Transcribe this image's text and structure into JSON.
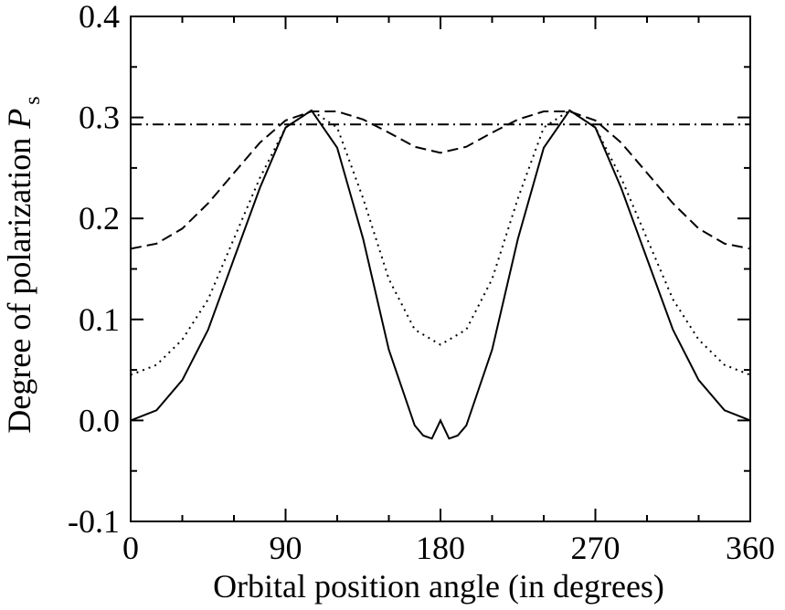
{
  "chart_data": {
    "type": "line",
    "title": "",
    "xlabel": "Orbital position angle (in degrees)",
    "ylabel": "Degree of polarization",
    "ylabel_symbol": "P",
    "ylabel_subscript": "s",
    "xlim": [
      0,
      360
    ],
    "ylim": [
      -0.1,
      0.4
    ],
    "x_ticks": [
      0,
      90,
      180,
      270,
      360
    ],
    "x_tick_labels": [
      "0",
      "90",
      "180",
      "270",
      "360"
    ],
    "x_minor_step": 30,
    "y_ticks": [
      -0.1,
      0.0,
      0.1,
      0.2,
      0.3,
      0.4
    ],
    "y_tick_labels": [
      "-0.1",
      "0.0",
      "0.1",
      "0.2",
      "0.3",
      "0.4"
    ],
    "y_minor_step": 0.05,
    "grid": false,
    "legend": "none",
    "series": [
      {
        "line_style": "solid",
        "x": [
          0,
          15,
          30,
          45,
          60,
          75,
          90,
          105,
          120,
          135,
          150,
          165,
          170,
          175,
          180,
          185,
          190,
          195,
          210,
          225,
          240,
          255,
          270,
          285,
          300,
          315,
          330,
          345,
          360
        ],
        "y": [
          0.0,
          0.01,
          0.04,
          0.09,
          0.16,
          0.23,
          0.29,
          0.307,
          0.27,
          0.18,
          0.07,
          -0.005,
          -0.015,
          -0.018,
          0.0,
          -0.018,
          -0.015,
          -0.005,
          0.07,
          0.18,
          0.27,
          0.307,
          0.29,
          0.23,
          0.16,
          0.09,
          0.04,
          0.01,
          0.0
        ]
      },
      {
        "line_style": "dotted",
        "x": [
          0,
          15,
          30,
          45,
          60,
          75,
          90,
          105,
          120,
          135,
          150,
          165,
          180,
          195,
          210,
          225,
          240,
          255,
          270,
          285,
          300,
          315,
          330,
          345,
          360
        ],
        "y": [
          0.045,
          0.055,
          0.08,
          0.12,
          0.18,
          0.24,
          0.29,
          0.307,
          0.29,
          0.22,
          0.14,
          0.09,
          0.075,
          0.09,
          0.14,
          0.22,
          0.29,
          0.307,
          0.29,
          0.24,
          0.18,
          0.12,
          0.08,
          0.055,
          0.045
        ]
      },
      {
        "line_style": "dashed",
        "x": [
          0,
          15,
          30,
          45,
          60,
          75,
          90,
          105,
          120,
          135,
          150,
          165,
          180,
          195,
          210,
          225,
          240,
          255,
          270,
          285,
          300,
          315,
          330,
          345,
          360
        ],
        "y": [
          0.17,
          0.175,
          0.19,
          0.215,
          0.245,
          0.275,
          0.297,
          0.306,
          0.306,
          0.298,
          0.285,
          0.271,
          0.265,
          0.271,
          0.285,
          0.298,
          0.306,
          0.306,
          0.297,
          0.275,
          0.245,
          0.215,
          0.19,
          0.175,
          0.17
        ]
      },
      {
        "line_style": "dashdot",
        "x": [
          0,
          360
        ],
        "y": [
          0.293,
          0.293
        ]
      }
    ]
  }
}
